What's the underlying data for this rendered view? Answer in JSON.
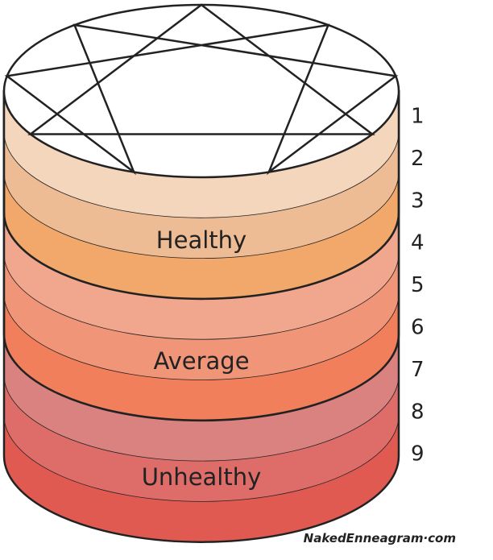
{
  "levels": [
    "1",
    "2",
    "3",
    "4",
    "5",
    "6",
    "7",
    "8",
    "9"
  ],
  "groups": [
    "Healthy",
    "Average",
    "Unhealthy"
  ],
  "watermark": "NakedEnneagram·com"
}
